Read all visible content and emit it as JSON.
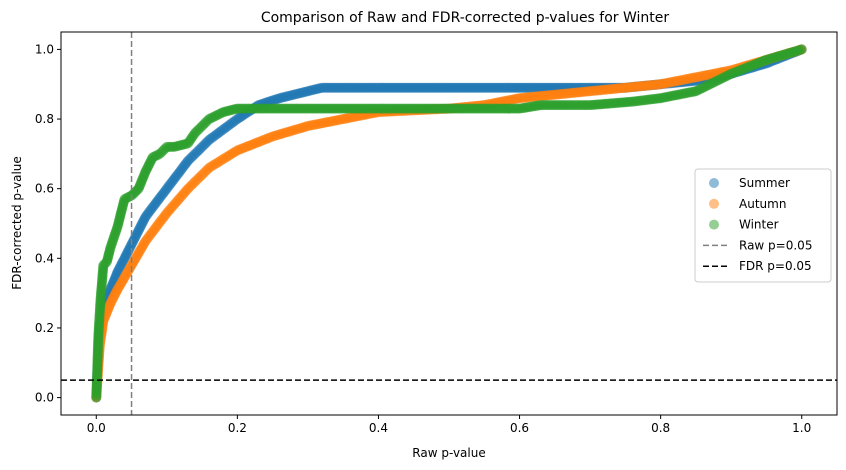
{
  "chart_data": {
    "type": "scatter",
    "title": "Comparison of Raw and FDR-corrected p-values for Winter",
    "xlabel": "Raw p-value",
    "ylabel": "FDR-corrected p-value",
    "xlim": [
      -0.05,
      1.05
    ],
    "ylim": [
      -0.05,
      1.05
    ],
    "xticks": [
      0.0,
      0.2,
      0.4,
      0.6,
      0.8,
      1.0
    ],
    "xtick_labels": [
      "0.0",
      "0.2",
      "0.4",
      "0.6",
      "0.8",
      "1.0"
    ],
    "yticks": [
      0.0,
      0.2,
      0.4,
      0.6,
      0.8,
      1.0
    ],
    "ytick_labels": [
      "0.0",
      "0.2",
      "0.4",
      "0.6",
      "0.8",
      "1.0"
    ],
    "grid": false,
    "legend_position": "center-right",
    "series": [
      {
        "name": "Summer",
        "color": "#1f77b4",
        "x": [
          0.0,
          0.005,
          0.01,
          0.02,
          0.03,
          0.05,
          0.07,
          0.1,
          0.13,
          0.16,
          0.2,
          0.23,
          0.26,
          0.3,
          0.32,
          0.4,
          0.5,
          0.6,
          0.7,
          0.75,
          0.8,
          0.85,
          0.9,
          0.95,
          1.0
        ],
        "y": [
          0.0,
          0.2,
          0.26,
          0.31,
          0.36,
          0.44,
          0.52,
          0.6,
          0.68,
          0.74,
          0.8,
          0.84,
          0.86,
          0.88,
          0.89,
          0.89,
          0.89,
          0.89,
          0.89,
          0.89,
          0.9,
          0.91,
          0.93,
          0.96,
          1.0
        ]
      },
      {
        "name": "Autumn",
        "color": "#ff7f0e",
        "x": [
          0.0,
          0.005,
          0.01,
          0.02,
          0.03,
          0.05,
          0.07,
          0.1,
          0.13,
          0.16,
          0.2,
          0.25,
          0.3,
          0.35,
          0.4,
          0.5,
          0.55,
          0.6,
          0.7,
          0.75,
          0.8,
          0.85,
          0.9,
          0.95,
          1.0
        ],
        "y": [
          0.0,
          0.15,
          0.22,
          0.27,
          0.31,
          0.38,
          0.45,
          0.53,
          0.6,
          0.66,
          0.71,
          0.75,
          0.78,
          0.8,
          0.82,
          0.83,
          0.84,
          0.86,
          0.88,
          0.89,
          0.9,
          0.92,
          0.94,
          0.97,
          1.0
        ]
      },
      {
        "name": "Winter",
        "color": "#2ca02c",
        "x": [
          0.0,
          0.003,
          0.006,
          0.01,
          0.015,
          0.02,
          0.03,
          0.04,
          0.05,
          0.055,
          0.06,
          0.07,
          0.08,
          0.09,
          0.1,
          0.11,
          0.13,
          0.14,
          0.16,
          0.18,
          0.2,
          0.3,
          0.4,
          0.5,
          0.6,
          0.63,
          0.7,
          0.76,
          0.8,
          0.85,
          0.9,
          0.95,
          1.0
        ],
        "y": [
          0.0,
          0.18,
          0.28,
          0.38,
          0.39,
          0.43,
          0.49,
          0.57,
          0.58,
          0.59,
          0.6,
          0.65,
          0.69,
          0.7,
          0.72,
          0.72,
          0.73,
          0.76,
          0.8,
          0.82,
          0.83,
          0.83,
          0.83,
          0.83,
          0.83,
          0.84,
          0.84,
          0.85,
          0.86,
          0.88,
          0.93,
          0.97,
          1.0
        ]
      }
    ],
    "reference_lines": [
      {
        "name": "Raw p=0.05",
        "orientation": "vertical",
        "value": 0.05,
        "color": "#808080",
        "style": "dashed"
      },
      {
        "name": "FDR p=0.05",
        "orientation": "horizontal",
        "value": 0.05,
        "color": "#000000",
        "style": "dashed"
      }
    ],
    "legend": [
      {
        "label": "Summer",
        "kind": "marker",
        "color": "#1f77b4"
      },
      {
        "label": "Autumn",
        "kind": "marker",
        "color": "#ff7f0e"
      },
      {
        "label": "Winter",
        "kind": "marker",
        "color": "#2ca02c"
      },
      {
        "label": "Raw p=0.05",
        "kind": "line",
        "color": "#808080"
      },
      {
        "label": "FDR p=0.05",
        "kind": "line",
        "color": "#000000"
      }
    ]
  }
}
